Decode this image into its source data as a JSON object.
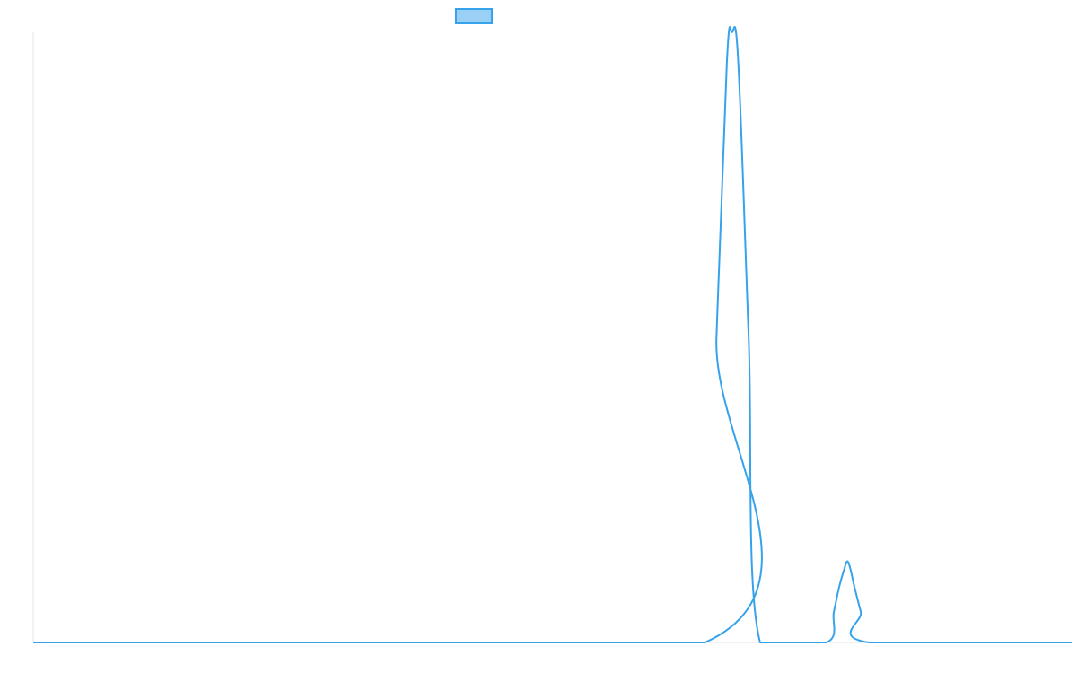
{
  "chart_data": {
    "type": "area",
    "title": "",
    "xlabel": "",
    "ylabel": "",
    "xlim": [
      0,
      1
    ],
    "ylim": [
      0,
      1
    ],
    "grid": false,
    "legend": {
      "position": "top-center",
      "entries": [
        {
          "label": "",
          "color": "#36a2eb",
          "fill": "#9ad0f5"
        }
      ]
    },
    "series": [
      {
        "color": "#36a2eb",
        "x": [
          0,
          0.647,
          0.658,
          0.668,
          0.673,
          0.679,
          0.689,
          0.7,
          0.764,
          0.771,
          0.776,
          0.781,
          0.784,
          0.787,
          0.791,
          0.797,
          0.805,
          1
        ],
        "y": [
          0,
          0,
          0.5,
          0.95,
          1.0,
          0.95,
          0.5,
          0,
          0,
          0.05,
          0.09,
          0.12,
          0.133,
          0.12,
          0.09,
          0.05,
          0,
          0
        ]
      }
    ]
  }
}
